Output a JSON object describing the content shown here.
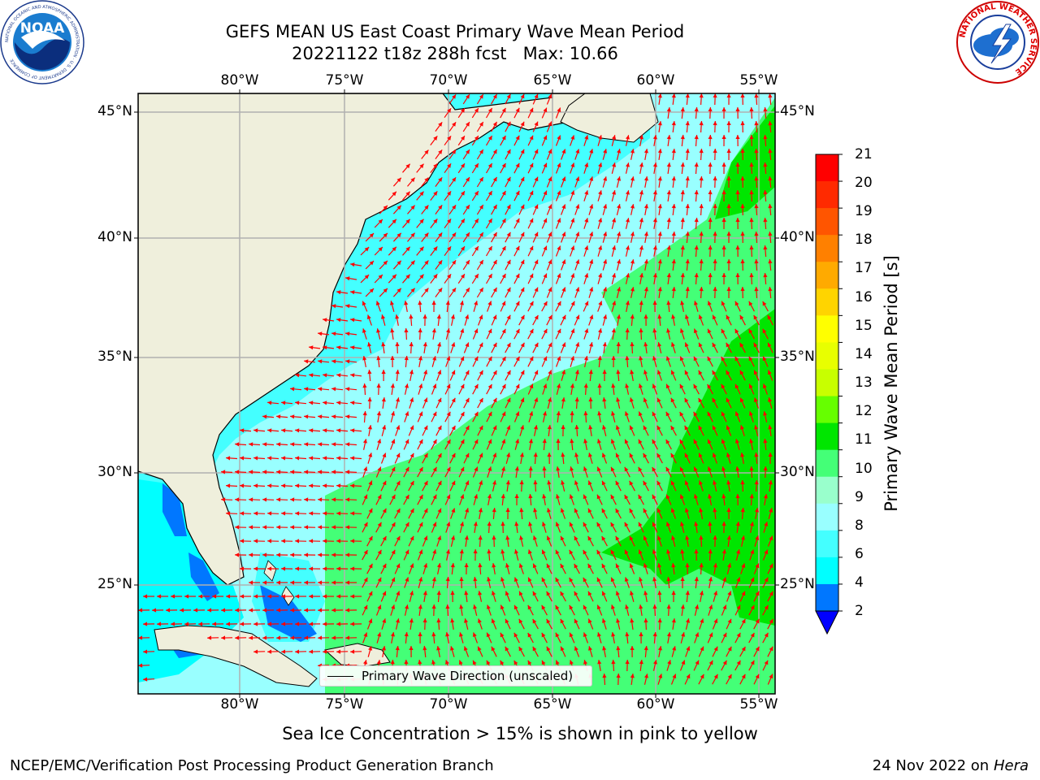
{
  "header": {
    "title_line1": "GEFS MEAN US East Coast Primary Wave Mean Period",
    "title_line2": "20221122 t18z 288h fcst   Max: 10.66"
  },
  "logos": {
    "left": {
      "text": "NOAA",
      "ring_text": "NATIONAL OCEANIC AND ATMOSPHERIC ADMINISTRATION · U.S. DEPARTMENT OF COMMERCE",
      "icon": "noaa-logo"
    },
    "right": {
      "ring_text": "NATIONAL WEATHER SERVICE",
      "icon": "nws-logo"
    }
  },
  "map": {
    "projection": "plate-carree",
    "lon_range": [
      -85,
      -54.4
    ],
    "lat_range": [
      20.5,
      45.8
    ],
    "ocean_field_shown": "Primary Wave Mean Period",
    "arrow_color": "#ff0000",
    "land_color": "#efefdc",
    "gridline_color": "#b0b0b0",
    "lon_ticks": [
      "80°W",
      "75°W",
      "70°W",
      "65°W",
      "60°W",
      "55°W"
    ],
    "lat_ticks": [
      "45°N",
      "40°N",
      "35°N",
      "30°N",
      "25°N"
    ]
  },
  "legend": {
    "label": "Primary Wave Direction (unscaled)",
    "line_color": "#000000"
  },
  "colorbar": {
    "label": "Primary Wave Mean Period [s]",
    "ticks": [
      "21",
      "20",
      "19",
      "18",
      "17",
      "16",
      "15",
      "14",
      "13",
      "12",
      "11",
      "10",
      "9",
      "8",
      "6",
      "4",
      "2"
    ],
    "bins_top_to_bottom": [
      "#ff0000",
      "#ff2a00",
      "#ff5500",
      "#ff8000",
      "#ffaa00",
      "#ffd400",
      "#ffff00",
      "#e8ff00",
      "#c8ff00",
      "#66ff00",
      "#00e600",
      "#44ff77",
      "#99ffcc",
      "#99ffff",
      "#44ffff",
      "#00ffff",
      "#0077ff"
    ],
    "under_color": "#0000ff"
  },
  "subtitle": "Sea Ice Concentration > 15% is shown in pink to yellow",
  "footer": {
    "left": "NCEP/EMC/Verification Post Processing Product Generation Branch",
    "right_date": "24 Nov 2022 on",
    "right_host": "Hera"
  }
}
